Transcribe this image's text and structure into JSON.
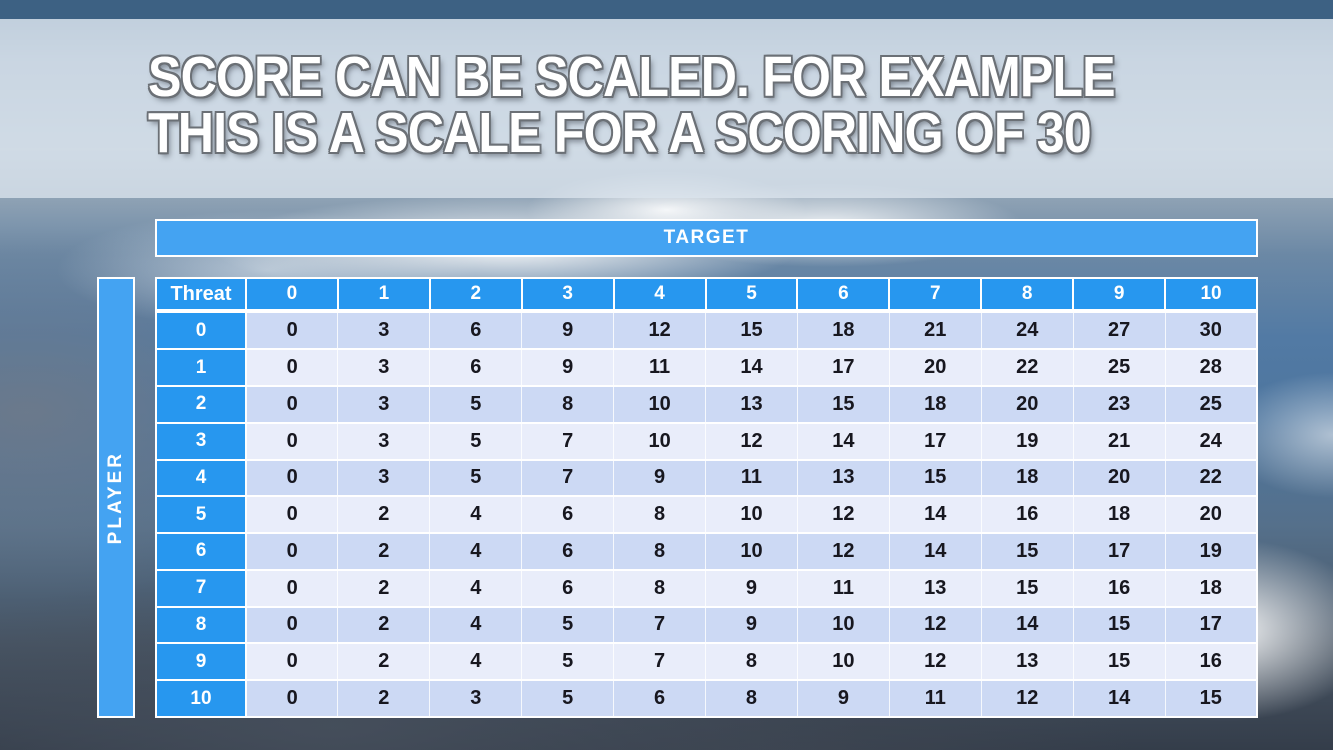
{
  "slide": {
    "title_line1": "SCORE CAN BE SCALED. FOR EXAMPLE",
    "title_line2": "THIS IS A SCALE FOR A SCORING OF 30"
  },
  "colors": {
    "header_blue": "#2797EF",
    "bar_blue": "#44A3F2",
    "row_even": "#CCD9F4",
    "row_odd": "#E9EDFA",
    "top_strip": "#3D6183",
    "cell_text": "#17171F"
  },
  "chart_data": {
    "type": "table",
    "title": "SCORE CAN BE SCALED. FOR EXAMPLE THIS IS A SCALE FOR A SCORING OF 30",
    "x_header": "TARGET",
    "y_header": "PLAYER",
    "corner_label": "Threat",
    "columns": [
      "0",
      "1",
      "2",
      "3",
      "4",
      "5",
      "6",
      "7",
      "8",
      "9",
      "10"
    ],
    "row_labels": [
      "0",
      "1",
      "2",
      "3",
      "4",
      "5",
      "6",
      "7",
      "8",
      "9",
      "10"
    ],
    "values": [
      [
        0,
        3,
        6,
        9,
        12,
        15,
        18,
        21,
        24,
        27,
        30
      ],
      [
        0,
        3,
        6,
        9,
        11,
        14,
        17,
        20,
        22,
        25,
        28
      ],
      [
        0,
        3,
        5,
        8,
        10,
        13,
        15,
        18,
        20,
        23,
        25
      ],
      [
        0,
        3,
        5,
        7,
        10,
        12,
        14,
        17,
        19,
        21,
        24
      ],
      [
        0,
        3,
        5,
        7,
        9,
        11,
        13,
        15,
        18,
        20,
        22
      ],
      [
        0,
        2,
        4,
        6,
        8,
        10,
        12,
        14,
        16,
        18,
        20
      ],
      [
        0,
        2,
        4,
        6,
        8,
        10,
        12,
        14,
        15,
        17,
        19
      ],
      [
        0,
        2,
        4,
        6,
        8,
        9,
        11,
        13,
        15,
        16,
        18
      ],
      [
        0,
        2,
        4,
        5,
        7,
        9,
        10,
        12,
        14,
        15,
        17
      ],
      [
        0,
        2,
        4,
        5,
        7,
        8,
        10,
        12,
        13,
        15,
        16
      ],
      [
        0,
        2,
        3,
        5,
        6,
        8,
        9,
        11,
        12,
        14,
        15
      ]
    ],
    "layout": {
      "grid": "white gridlines",
      "row_striping": "even rows darker blue, odd rows lighter blue",
      "max_value": 30
    }
  }
}
